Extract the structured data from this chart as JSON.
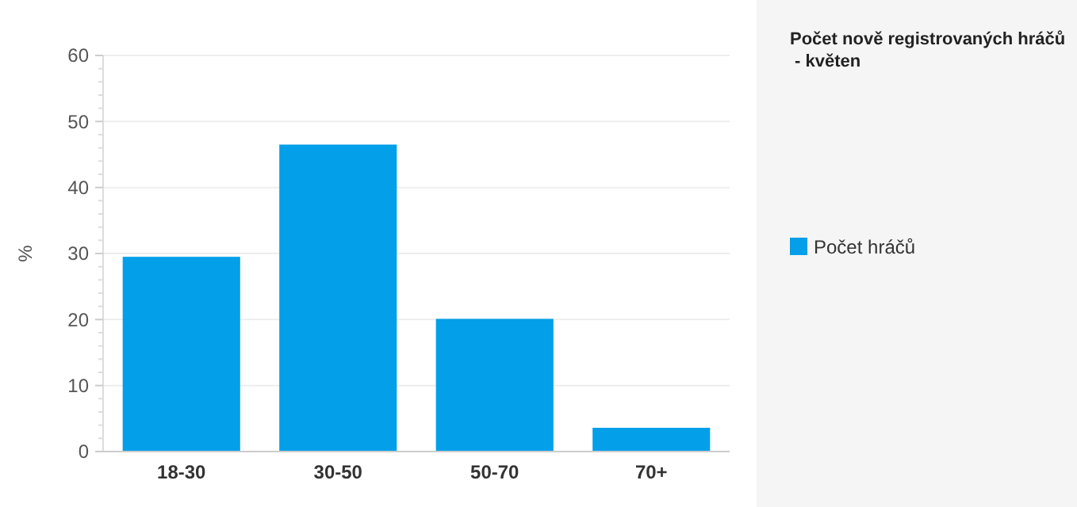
{
  "chart_data": {
    "type": "bar",
    "title": "Počet nově registrovaných hráčů - květen",
    "ylabel": "%",
    "categories": [
      "18-30",
      "30-50",
      "50-70",
      "70+"
    ],
    "series": [
      {
        "name": "Počet hráčů",
        "color": "#039fe9",
        "values": [
          29.5,
          46.5,
          20.1,
          3.6
        ]
      }
    ],
    "ylim": [
      0,
      60
    ],
    "yticks": [
      0,
      10,
      20,
      30,
      40,
      50,
      60
    ],
    "grid": "y",
    "legend": "right"
  }
}
